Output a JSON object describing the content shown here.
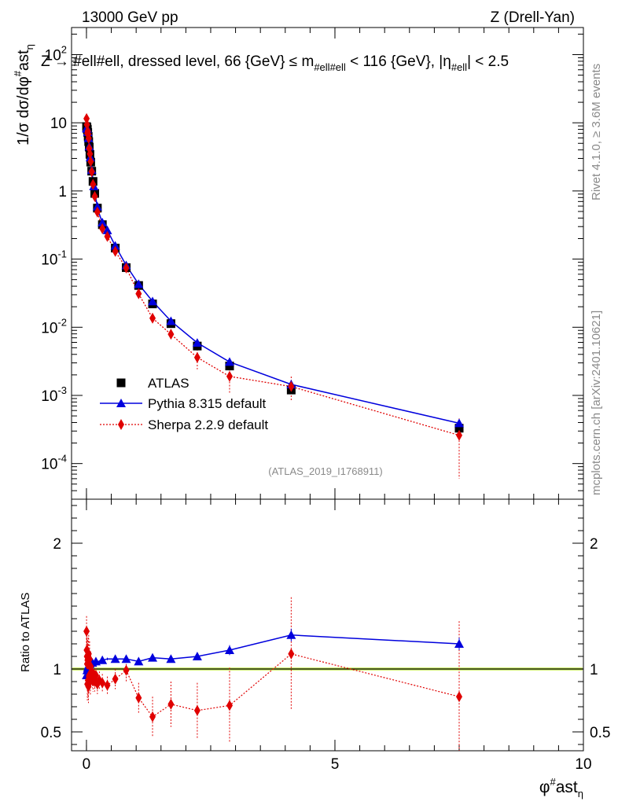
{
  "header": {
    "left": "13000 GeV pp",
    "right": "Z (Drell-Yan)"
  },
  "plot_title": "Z → #ell#ell, dressed level, 66 {GeV} ≤ m#ell#ell < 116 {GeV}, |η#ell| < 2.5",
  "plot_title_parts": {
    "main": "Z → #ell#ell, dressed level, 66 {GeV} ≤ m",
    "sub1": "#ell#ell",
    "mid": " < 116 {GeV}, |η",
    "sub2": "#ell",
    "end": "| < 2.5"
  },
  "ylabel": {
    "main": "1/σ dσ/dφ",
    "sup": "#",
    "mid": "ast",
    "sub": "η"
  },
  "xlabel": {
    "main": "φ",
    "sup": "#",
    "mid": "ast",
    "sub": "η"
  },
  "ratio_ylabel": "Ratio to ATLAS",
  "analysis_tag": "(ATLAS_2019_I1768911)",
  "side_text": {
    "rivet": "Rivet 4.1.0, ≥ 3.6M events",
    "site": "mcplots.cern.ch [arXiv:2401.10621]"
  },
  "legend": [
    {
      "label": "ATLAS",
      "color": "#000000",
      "marker": "square"
    },
    {
      "label": "Pythia 8.315 default",
      "color": "#0000dd",
      "marker": "triangle"
    },
    {
      "label": "Sherpa 2.2.9 default",
      "color": "#e00000",
      "marker": "diamond"
    }
  ],
  "main_y_ticks": [
    {
      "v": 0.0001,
      "base": "10",
      "exp": "-4"
    },
    {
      "v": 0.001,
      "base": "10",
      "exp": "-3"
    },
    {
      "v": 0.01,
      "base": "10",
      "exp": "-2"
    },
    {
      "v": 0.1,
      "base": "10",
      "exp": "-1"
    },
    {
      "v": 1,
      "base": "1",
      "exp": ""
    },
    {
      "v": 10,
      "base": "10",
      "exp": ""
    },
    {
      "v": 100,
      "base": "10",
      "exp": "2"
    }
  ],
  "ratio_y_ticks": [
    {
      "v": 0.5,
      "label": "0.5"
    },
    {
      "v": 1,
      "label": "1"
    },
    {
      "v": 2,
      "label": "2"
    }
  ],
  "x_ticks": [
    {
      "v": 0,
      "label": "0"
    },
    {
      "v": 5,
      "label": "5"
    },
    {
      "v": 10,
      "label": "10"
    }
  ],
  "chart_data": {
    "type": "scatter",
    "x_scale": "linear",
    "y_scale": "log",
    "xlim": [
      -0.3,
      10
    ],
    "ylim": [
      3e-05,
      250
    ],
    "ratio_ylim": [
      0.35,
      2.35
    ],
    "x": [
      0.002,
      0.006,
      0.01,
      0.014,
      0.018,
      0.022,
      0.026,
      0.03,
      0.035,
      0.04,
      0.045,
      0.05,
      0.056,
      0.063,
      0.07,
      0.078,
      0.086,
      0.095,
      0.106,
      0.119,
      0.132,
      0.148,
      0.167,
      0.19,
      0.22,
      0.26,
      0.32,
      0.42,
      0.58,
      0.8,
      1.05,
      1.33,
      1.7,
      2.23,
      2.88,
      4.12,
      7.5
    ],
    "series": [
      {
        "name": "ATLAS",
        "values": [
          8.8,
          8.7,
          8.5,
          8.3,
          8.0,
          7.6,
          7.2,
          6.8,
          6.3,
          5.8,
          5.3,
          4.9,
          4.4,
          3.9,
          3.45,
          3.0,
          2.65,
          2.3,
          1.95,
          1.65,
          1.38,
          1.12,
          0.92,
          0.72,
          0.56,
          0.43,
          0.32,
          0.245,
          0.145,
          0.075,
          0.041,
          0.022,
          0.0113,
          0.0053,
          0.0027,
          0.0012,
          0.00033
        ],
        "ratio": [
          1,
          1,
          1,
          1,
          1,
          1,
          1,
          1,
          1,
          1,
          1,
          1,
          1,
          1,
          1,
          1,
          1,
          1,
          1,
          1,
          1,
          1,
          1,
          1,
          1,
          1,
          1,
          1,
          1,
          1,
          1,
          1,
          1,
          1,
          1,
          1,
          1
        ]
      },
      {
        "name": "Pythia 8.315 default",
        "values": [
          8.3,
          8.4,
          8.3,
          8.2,
          8.0,
          7.7,
          7.3,
          6.9,
          6.4,
          5.95,
          5.45,
          5.0,
          4.5,
          4.05,
          3.55,
          3.1,
          2.75,
          2.4,
          2.03,
          1.72,
          1.44,
          1.17,
          0.97,
          0.76,
          0.59,
          0.455,
          0.345,
          0.265,
          0.157,
          0.081,
          0.043,
          0.024,
          0.0123,
          0.0059,
          0.0031,
          0.00145,
          0.00039
        ],
        "ratio": [
          0.95,
          0.97,
          0.98,
          0.99,
          1.0,
          1.01,
          1.01,
          1.02,
          1.02,
          1.03,
          1.03,
          1.03,
          1.04,
          1.04,
          1.04,
          1.04,
          1.04,
          1.04,
          1.05,
          1.05,
          1.05,
          1.05,
          1.06,
          1.06,
          1.06,
          1.06,
          1.07,
          1.08,
          1.08,
          1.08,
          1.06,
          1.09,
          1.08,
          1.1,
          1.15,
          1.27,
          1.2
        ],
        "ratio_err": [
          0.01,
          0.01,
          0.01,
          0.01,
          0.01,
          0.01,
          0.01,
          0.01,
          0.01,
          0.01,
          0.01,
          0.01,
          0.01,
          0.01,
          0.01,
          0.01,
          0.01,
          0.01,
          0.01,
          0.01,
          0.01,
          0.01,
          0.01,
          0.01,
          0.01,
          0.01,
          0.01,
          0.01,
          0.01,
          0.01,
          0.02,
          0.02,
          0.02,
          0.03,
          0.04,
          0.05,
          0.05
        ]
      },
      {
        "name": "Sherpa 2.2.9 default",
        "values": [
          11.5,
          10.0,
          9.4,
          8.6,
          7.0,
          8.1,
          7.5,
          6.2,
          6.8,
          5.0,
          5.9,
          4.6,
          4.2,
          4.2,
          3.5,
          2.7,
          2.7,
          2.2,
          1.92,
          1.55,
          1.25,
          1.07,
          0.83,
          0.68,
          0.49,
          0.39,
          0.28,
          0.215,
          0.13,
          0.074,
          0.031,
          0.0136,
          0.0079,
          0.0036,
          0.0019,
          0.00135,
          0.00026
        ],
        "ratio": [
          1.3,
          1.15,
          1.1,
          1.04,
          0.88,
          1.07,
          1.04,
          0.91,
          1.08,
          0.86,
          1.12,
          0.94,
          0.95,
          1.08,
          1.02,
          0.9,
          1.02,
          0.96,
          0.98,
          0.94,
          0.91,
          0.96,
          0.9,
          0.95,
          0.88,
          0.91,
          0.89,
          0.87,
          0.92,
          0.99,
          0.77,
          0.62,
          0.72,
          0.67,
          0.71,
          1.12,
          0.78
        ],
        "ratio_err": [
          0.12,
          0.14,
          0.14,
          0.15,
          0.13,
          0.16,
          0.15,
          0.14,
          0.17,
          0.13,
          0.15,
          0.13,
          0.12,
          0.14,
          0.12,
          0.11,
          0.12,
          0.1,
          0.1,
          0.09,
          0.09,
          0.09,
          0.08,
          0.08,
          0.08,
          0.07,
          0.07,
          0.07,
          0.08,
          0.1,
          0.12,
          0.16,
          0.18,
          0.22,
          0.3,
          0.45,
          0.6
        ]
      }
    ],
    "main_markers_shown": {
      "atlas": [
        0,
        2,
        4,
        6,
        8,
        10,
        12,
        14,
        16,
        18,
        20,
        22,
        24,
        26,
        28,
        29,
        30,
        31,
        32,
        33,
        34,
        35,
        36
      ],
      "pythia": [
        0,
        3,
        6,
        9,
        12,
        15,
        18,
        21,
        24,
        26,
        27,
        28,
        29,
        30,
        31,
        32,
        33,
        34,
        35,
        36
      ],
      "sherpa": [
        0,
        2,
        4,
        6,
        8,
        10,
        12,
        14,
        16,
        18,
        20,
        22,
        24,
        26,
        27,
        28,
        29,
        30,
        31,
        32,
        33,
        34,
        35,
        36
      ]
    },
    "ratio_markers_shown": {
      "pythia": [
        0,
        3,
        6,
        10,
        14,
        19,
        23,
        26,
        28,
        29,
        30,
        31,
        32,
        33,
        34,
        35,
        36
      ],
      "sherpa": [
        0,
        1,
        2,
        3,
        4,
        5,
        6,
        7,
        8,
        9,
        10,
        11,
        12,
        13,
        14,
        15,
        16,
        17,
        18,
        19,
        20,
        21,
        22,
        23,
        24,
        25,
        26,
        27,
        28,
        29,
        30,
        31,
        32,
        33,
        34,
        35,
        36
      ]
    },
    "band_color": "#ccee66"
  }
}
